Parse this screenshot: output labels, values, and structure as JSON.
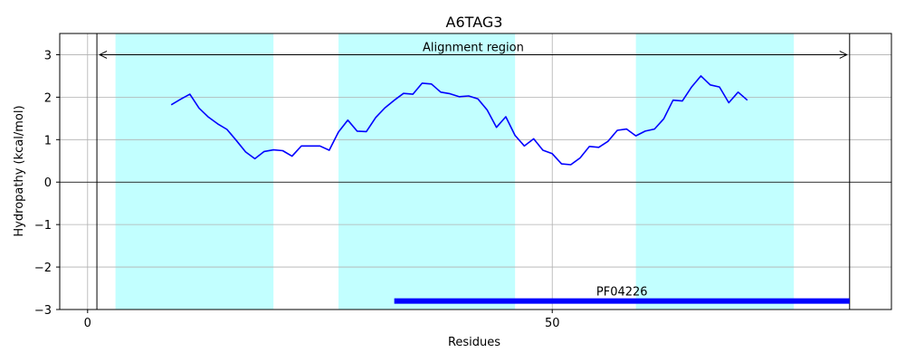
{
  "chart_data": {
    "type": "line",
    "title": "A6TAG3",
    "xlabel": "Residues",
    "ylabel": "Hydropathy (kcal/mol)",
    "xlim": [
      -3,
      86.5
    ],
    "ylim": [
      -3,
      3.5
    ],
    "x_ticks": [
      0,
      50
    ],
    "y_ticks": [
      -3,
      -2,
      -1,
      0,
      1,
      2,
      3
    ],
    "y_tick_labels": [
      "−3",
      "−2",
      "−1",
      "0",
      "1",
      "2",
      "3"
    ],
    "grid": true,
    "colors": {
      "line": "#0000ff",
      "region": "#c2ffff",
      "domain_bar": "#0000ff"
    },
    "membrane_regions": [
      [
        3,
        20
      ],
      [
        27,
        46
      ],
      [
        59,
        76
      ]
    ],
    "alignment_region": {
      "label": "Alignment region",
      "start": 1,
      "end": 82,
      "y": 3.0
    },
    "domain": {
      "label": "PF04226",
      "start": 33,
      "end": 82,
      "y": -2.8
    },
    "series": [
      {
        "x": [
          9,
          10,
          11,
          12,
          13,
          14,
          15,
          16,
          17,
          18,
          19,
          20,
          21,
          22,
          23,
          24,
          25,
          26,
          27,
          28,
          29,
          30,
          31,
          32,
          33,
          34,
          35,
          36,
          37,
          38,
          39,
          40,
          41,
          42,
          43,
          44,
          45,
          46,
          47,
          48,
          49,
          50,
          51,
          52,
          53,
          54,
          55,
          56,
          57,
          58,
          59,
          60,
          61,
          62,
          63,
          64,
          65,
          66,
          67,
          68,
          69,
          70,
          71
        ],
        "values": [
          1.82,
          1.95,
          2.07,
          1.74,
          1.53,
          1.37,
          1.24,
          0.98,
          0.71,
          0.55,
          0.72,
          0.76,
          0.74,
          0.61,
          0.85,
          0.85,
          0.85,
          0.75,
          1.18,
          1.46,
          1.2,
          1.19,
          1.52,
          1.75,
          1.93,
          2.09,
          2.07,
          2.33,
          2.31,
          2.12,
          2.08,
          2.01,
          2.03,
          1.96,
          1.7,
          1.29,
          1.54,
          1.1,
          0.85,
          1.02,
          0.75,
          0.67,
          0.43,
          0.41,
          0.57,
          0.84,
          0.82,
          0.96,
          1.22,
          1.25,
          1.09,
          1.2,
          1.25,
          1.49,
          1.93,
          1.91,
          2.24,
          2.5,
          2.29,
          2.24,
          1.87,
          2.12,
          1.93
        ]
      }
    ]
  }
}
